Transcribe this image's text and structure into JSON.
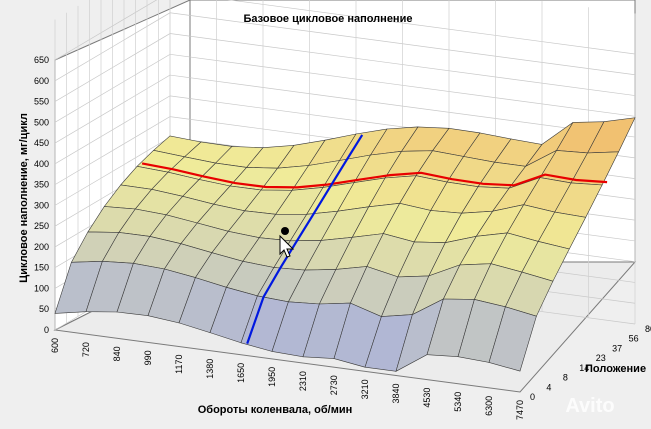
{
  "chart_data": {
    "type": "surface",
    "title": "Базовое цикловое наполнение",
    "zlabel": "Цикловое наполнение, мг/цикл",
    "xlabel": "Обороты коленвала, об/мин",
    "ylabel": "Положение",
    "z_ticks": [
      0,
      50,
      100,
      150,
      200,
      250,
      300,
      350,
      400,
      450,
      500,
      550,
      600,
      650
    ],
    "zlim": [
      0,
      650
    ],
    "rpm_ticks": [
      "600",
      "720",
      "840",
      "990",
      "1170",
      "1380",
      "1650",
      "1950",
      "2310",
      "2730",
      "3210",
      "3840",
      "4530",
      "5340",
      "6300",
      "7470"
    ],
    "position_ticks": [
      "0",
      "4",
      "8",
      "14",
      "23",
      "37",
      "56",
      "80"
    ],
    "grid": true,
    "colors": {
      "low": "#9fa8e6",
      "mid": "#f0ec9a",
      "high": "#f3a95a",
      "red_line": "#e80000",
      "blue_line": "#0018e0",
      "cursor_point": "#000000"
    },
    "cursor_icon": "arrow-cursor-icon",
    "watermark": "Avito"
  }
}
